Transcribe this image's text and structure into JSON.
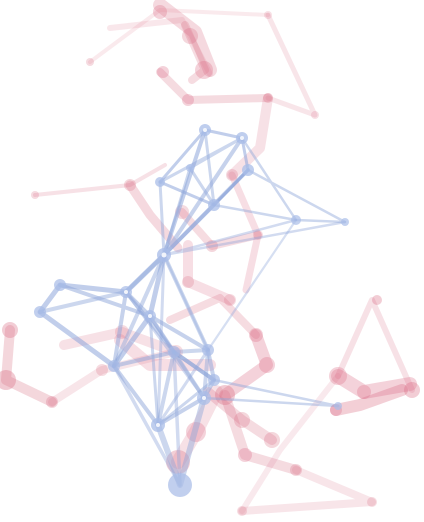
{
  "palette": {
    "background": "#ffffff",
    "pink": "#d96b83",
    "blue": "#8ea6da"
  },
  "networks": [
    {
      "name": "pink-network",
      "color": "#d96b83"
    },
    {
      "name": "blue-network",
      "color": "#8ea6da"
    }
  ]
}
